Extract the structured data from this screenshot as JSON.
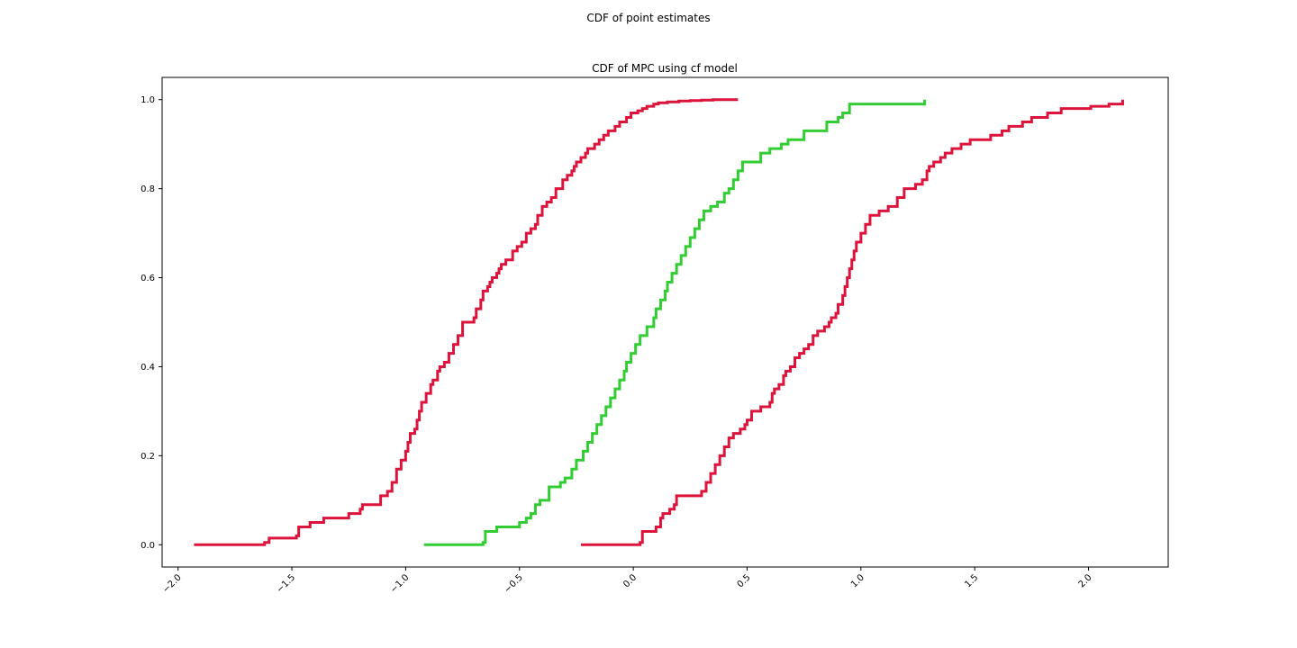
{
  "figure": {
    "suptitle": "CDF of point estimates"
  },
  "chart_data": {
    "type": "line",
    "title": "CDF of MPC using cf model",
    "xlabel": "",
    "ylabel": "",
    "xlim": [
      -2.07,
      2.35
    ],
    "ylim": [
      -0.05,
      1.05
    ],
    "xticks": [
      -2.0,
      -1.5,
      -1.0,
      -0.5,
      0.0,
      0.5,
      1.0,
      1.5,
      2.0
    ],
    "xtick_labels": [
      "−2.0",
      "−1.5",
      "−1.0",
      "−0.5",
      "0.0",
      "0.5",
      "1.0",
      "1.5",
      "2.0"
    ],
    "yticks": [
      0.0,
      0.2,
      0.4,
      0.6,
      0.8,
      1.0
    ],
    "ytick_labels": [
      "0.0",
      "0.2",
      "0.4",
      "0.6",
      "0.8",
      "1.0"
    ],
    "grid": false,
    "legend": "none",
    "series": [
      {
        "color": "#dc143c",
        "x": [
          -1.93,
          -1.62,
          -1.6,
          -1.48,
          -1.47,
          -1.42,
          -1.36,
          -1.25,
          -1.2,
          -1.19,
          -1.11,
          -1.08,
          -1.06,
          -1.04,
          -1.02,
          -1.0,
          -0.99,
          -0.98,
          -0.96,
          -0.95,
          -0.94,
          -0.93,
          -0.91,
          -0.89,
          -0.88,
          -0.86,
          -0.85,
          -0.83,
          -0.81,
          -0.79,
          -0.77,
          -0.75,
          -0.7,
          -0.69,
          -0.67,
          -0.66,
          -0.64,
          -0.63,
          -0.62,
          -0.6,
          -0.59,
          -0.58,
          -0.56,
          -0.53,
          -0.51,
          -0.49,
          -0.47,
          -0.45,
          -0.43,
          -0.42,
          -0.4,
          -0.38,
          -0.36,
          -0.34,
          -0.31,
          -0.29,
          -0.27,
          -0.26,
          -0.25,
          -0.23,
          -0.21,
          -0.2,
          -0.17,
          -0.15,
          -0.13,
          -0.11,
          -0.08,
          -0.06,
          -0.03,
          -0.01,
          0.02,
          0.04,
          0.06,
          0.09,
          0.11,
          0.15,
          0.2,
          0.25,
          0.3,
          0.35,
          0.46
        ],
        "y": [
          0.0,
          0.005,
          0.015,
          0.02,
          0.04,
          0.05,
          0.06,
          0.07,
          0.08,
          0.09,
          0.11,
          0.12,
          0.14,
          0.17,
          0.19,
          0.21,
          0.23,
          0.25,
          0.26,
          0.28,
          0.3,
          0.32,
          0.34,
          0.36,
          0.37,
          0.39,
          0.4,
          0.41,
          0.43,
          0.45,
          0.47,
          0.5,
          0.51,
          0.53,
          0.55,
          0.57,
          0.58,
          0.59,
          0.6,
          0.61,
          0.62,
          0.63,
          0.64,
          0.66,
          0.67,
          0.68,
          0.7,
          0.71,
          0.72,
          0.74,
          0.76,
          0.77,
          0.78,
          0.8,
          0.82,
          0.83,
          0.84,
          0.85,
          0.86,
          0.87,
          0.88,
          0.89,
          0.9,
          0.91,
          0.92,
          0.93,
          0.94,
          0.95,
          0.96,
          0.97,
          0.975,
          0.98,
          0.985,
          0.99,
          0.993,
          0.995,
          0.997,
          0.998,
          0.999,
          1.0,
          1.0
        ]
      },
      {
        "color": "#32cd32",
        "x": [
          -0.92,
          -0.66,
          -0.65,
          -0.6,
          -0.5,
          -0.47,
          -0.45,
          -0.43,
          -0.41,
          -0.37,
          -0.32,
          -0.3,
          -0.27,
          -0.25,
          -0.22,
          -0.2,
          -0.18,
          -0.16,
          -0.14,
          -0.12,
          -0.1,
          -0.08,
          -0.06,
          -0.04,
          -0.03,
          -0.01,
          0.01,
          0.03,
          0.06,
          0.09,
          0.1,
          0.12,
          0.14,
          0.15,
          0.17,
          0.19,
          0.21,
          0.23,
          0.25,
          0.27,
          0.29,
          0.31,
          0.34,
          0.37,
          0.4,
          0.42,
          0.44,
          0.46,
          0.48,
          0.56,
          0.6,
          0.65,
          0.68,
          0.75,
          0.85,
          0.9,
          0.92,
          0.95,
          1.28
        ],
        "y": [
          0.0,
          0.005,
          0.03,
          0.04,
          0.05,
          0.06,
          0.07,
          0.09,
          0.1,
          0.13,
          0.14,
          0.15,
          0.17,
          0.19,
          0.21,
          0.23,
          0.25,
          0.27,
          0.29,
          0.31,
          0.33,
          0.35,
          0.37,
          0.39,
          0.41,
          0.43,
          0.45,
          0.47,
          0.49,
          0.51,
          0.53,
          0.55,
          0.57,
          0.59,
          0.61,
          0.63,
          0.65,
          0.67,
          0.69,
          0.71,
          0.73,
          0.75,
          0.76,
          0.77,
          0.79,
          0.8,
          0.82,
          0.84,
          0.86,
          0.88,
          0.89,
          0.9,
          0.91,
          0.93,
          0.95,
          0.96,
          0.97,
          0.99,
          1.0
        ]
      },
      {
        "color": "#dc143c",
        "x": [
          -0.23,
          0.03,
          0.04,
          0.1,
          0.12,
          0.13,
          0.16,
          0.18,
          0.19,
          0.3,
          0.32,
          0.34,
          0.36,
          0.38,
          0.4,
          0.42,
          0.44,
          0.47,
          0.49,
          0.5,
          0.52,
          0.56,
          0.6,
          0.61,
          0.62,
          0.64,
          0.66,
          0.67,
          0.69,
          0.71,
          0.73,
          0.75,
          0.77,
          0.79,
          0.81,
          0.84,
          0.86,
          0.87,
          0.89,
          0.9,
          0.92,
          0.93,
          0.94,
          0.95,
          0.96,
          0.97,
          0.98,
          1.0,
          1.02,
          1.04,
          1.08,
          1.12,
          1.16,
          1.19,
          1.24,
          1.27,
          1.29,
          1.3,
          1.32,
          1.35,
          1.37,
          1.4,
          1.44,
          1.48,
          1.57,
          1.62,
          1.65,
          1.71,
          1.75,
          1.82,
          1.88,
          2.01,
          2.09,
          2.15
        ],
        "y": [
          0.0,
          0.005,
          0.03,
          0.04,
          0.06,
          0.07,
          0.08,
          0.09,
          0.11,
          0.12,
          0.14,
          0.16,
          0.18,
          0.2,
          0.22,
          0.24,
          0.25,
          0.26,
          0.27,
          0.28,
          0.3,
          0.31,
          0.32,
          0.34,
          0.35,
          0.36,
          0.38,
          0.39,
          0.4,
          0.42,
          0.43,
          0.44,
          0.45,
          0.47,
          0.48,
          0.49,
          0.5,
          0.51,
          0.52,
          0.54,
          0.56,
          0.58,
          0.6,
          0.62,
          0.64,
          0.66,
          0.68,
          0.7,
          0.72,
          0.74,
          0.75,
          0.76,
          0.78,
          0.8,
          0.81,
          0.82,
          0.84,
          0.85,
          0.86,
          0.87,
          0.88,
          0.89,
          0.9,
          0.91,
          0.92,
          0.93,
          0.94,
          0.95,
          0.96,
          0.97,
          0.98,
          0.985,
          0.99,
          1.0
        ]
      }
    ]
  }
}
